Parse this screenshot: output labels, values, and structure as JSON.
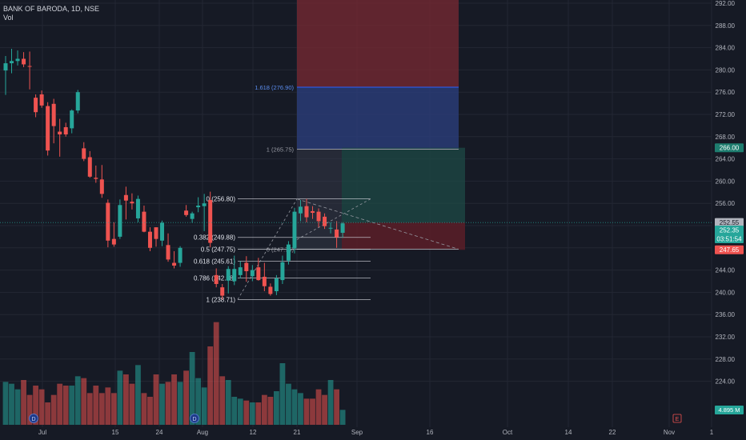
{
  "header": {
    "title": "BANK OF BARODA, 1D, NSE",
    "volume_label": "Vol"
  },
  "colors": {
    "background": "#161a25",
    "up": "#26a69a",
    "down": "#ef5350",
    "grid": "#232733",
    "axis_text": "#b2b5be",
    "fib_line": "#d1d4dc",
    "target_zone": "#7a2a33",
    "extension_zone": "#2a3d7a",
    "risk_zone": "#5a1f28",
    "reward_zone": "#1e4a46"
  },
  "chart_data": {
    "type": "candlestick",
    "title": "BANK OF BARODA, 1D, NSE",
    "ylim": [
      220.6,
      293.2
    ],
    "y_ticks": [
      "292.00",
      "288.00",
      "284.00",
      "280.00",
      "276.00",
      "272.00",
      "268.00",
      "264.00",
      "260.00",
      "256.00",
      "252.00",
      "248.00",
      "244.00",
      "240.00",
      "236.00",
      "232.00",
      "228.00",
      "224.00"
    ],
    "x_ticks": [
      "Jul",
      "15",
      "24",
      "Aug",
      "12",
      "21",
      "Sep",
      "16",
      "Oct",
      "14",
      "22",
      "Nov",
      "1"
    ],
    "candles": [
      {
        "o": 279.9,
        "h": 282.5,
        "l": 275.5,
        "c": 281.2
      },
      {
        "o": 281.2,
        "h": 283.8,
        "l": 279.4,
        "c": 281.6
      },
      {
        "o": 281.6,
        "h": 283.5,
        "l": 280.8,
        "c": 282.0
      },
      {
        "o": 282.0,
        "h": 283.2,
        "l": 280.5,
        "c": 281.0
      },
      {
        "o": 280.7,
        "h": 283.3,
        "l": 276.5,
        "c": 280.6
      },
      {
        "o": 275.0,
        "h": 275.6,
        "l": 271.5,
        "c": 272.4
      },
      {
        "o": 275.6,
        "h": 276.3,
        "l": 273.2,
        "c": 273.6
      },
      {
        "o": 273.5,
        "h": 274.2,
        "l": 264.6,
        "c": 265.5
      },
      {
        "o": 273.9,
        "h": 274.8,
        "l": 266.8,
        "c": 269.9
      },
      {
        "o": 268.9,
        "h": 271.2,
        "l": 264.4,
        "c": 268.4
      },
      {
        "o": 269.7,
        "h": 270.5,
        "l": 268.0,
        "c": 268.4
      },
      {
        "o": 269.5,
        "h": 272.9,
        "l": 268.6,
        "c": 272.7
      },
      {
        "o": 272.7,
        "h": 276.4,
        "l": 272.2,
        "c": 276.0
      },
      {
        "o": 265.9,
        "h": 267.0,
        "l": 263.6,
        "c": 264.0
      },
      {
        "o": 264.3,
        "h": 265.4,
        "l": 260.6,
        "c": 260.8
      },
      {
        "o": 260.6,
        "h": 262.8,
        "l": 259.7,
        "c": 260.4
      },
      {
        "o": 260.3,
        "h": 262.9,
        "l": 257.0,
        "c": 257.7
      },
      {
        "o": 256.1,
        "h": 256.7,
        "l": 248.1,
        "c": 249.3
      },
      {
        "o": 249.6,
        "h": 252.6,
        "l": 248.2,
        "c": 248.6
      },
      {
        "o": 250.0,
        "h": 256.7,
        "l": 249.6,
        "c": 255.7
      },
      {
        "o": 257.5,
        "h": 259.0,
        "l": 253.1,
        "c": 256.5
      },
      {
        "o": 256.3,
        "h": 257.8,
        "l": 254.9,
        "c": 256.0
      },
      {
        "o": 253.3,
        "h": 257.4,
        "l": 252.6,
        "c": 256.8
      },
      {
        "o": 254.5,
        "h": 255.6,
        "l": 250.8,
        "c": 250.9
      },
      {
        "o": 250.9,
        "h": 251.7,
        "l": 247.4,
        "c": 248.0
      },
      {
        "o": 251.7,
        "h": 251.7,
        "l": 248.2,
        "c": 249.6
      },
      {
        "o": 249.3,
        "h": 252.9,
        "l": 248.3,
        "c": 252.5
      },
      {
        "o": 248.5,
        "h": 250.6,
        "l": 245.5,
        "c": 245.9
      },
      {
        "o": 245.3,
        "h": 247.4,
        "l": 244.3,
        "c": 244.8
      },
      {
        "o": 245.3,
        "h": 248.3,
        "l": 244.6,
        "c": 248.0
      },
      {
        "o": 254.7,
        "h": 255.7,
        "l": 253.6,
        "c": 253.9
      },
      {
        "o": 253.2,
        "h": 254.5,
        "l": 252.5,
        "c": 254.2
      },
      {
        "o": 255.3,
        "h": 257.1,
        "l": 254.4,
        "c": 255.6
      },
      {
        "o": 255.5,
        "h": 257.7,
        "l": 251.0,
        "c": 256.0
      },
      {
        "o": 256.6,
        "h": 258.1,
        "l": 248.1,
        "c": 248.9
      },
      {
        "o": 243.1,
        "h": 244.3,
        "l": 240.9,
        "c": 241.5
      },
      {
        "o": 240.9,
        "h": 241.5,
        "l": 238.7,
        "c": 239.4
      },
      {
        "o": 242.1,
        "h": 244.7,
        "l": 239.8,
        "c": 244.2
      },
      {
        "o": 242.0,
        "h": 246.6,
        "l": 241.3,
        "c": 244.2
      },
      {
        "o": 243.1,
        "h": 245.6,
        "l": 242.5,
        "c": 244.5
      },
      {
        "o": 245.3,
        "h": 246.5,
        "l": 241.9,
        "c": 243.8
      },
      {
        "o": 242.9,
        "h": 244.9,
        "l": 242.0,
        "c": 244.0
      },
      {
        "o": 244.5,
        "h": 246.2,
        "l": 242.1,
        "c": 242.2
      },
      {
        "o": 242.8,
        "h": 245.3,
        "l": 240.2,
        "c": 241.1
      },
      {
        "o": 241.0,
        "h": 241.6,
        "l": 239.4,
        "c": 239.7
      },
      {
        "o": 240.2,
        "h": 243.1,
        "l": 239.5,
        "c": 242.5
      },
      {
        "o": 242.2,
        "h": 246.6,
        "l": 241.5,
        "c": 245.4
      },
      {
        "o": 245.7,
        "h": 249.2,
        "l": 245.0,
        "c": 248.6
      },
      {
        "o": 247.9,
        "h": 255.2,
        "l": 247.0,
        "c": 254.5
      },
      {
        "o": 254.2,
        "h": 256.6,
        "l": 252.8,
        "c": 255.4
      },
      {
        "o": 255.5,
        "h": 256.8,
        "l": 252.6,
        "c": 253.5
      },
      {
        "o": 254.6,
        "h": 255.5,
        "l": 253.2,
        "c": 254.3
      },
      {
        "o": 254.5,
        "h": 255.1,
        "l": 251.7,
        "c": 252.8
      },
      {
        "o": 253.6,
        "h": 254.2,
        "l": 251.4,
        "c": 251.9
      },
      {
        "o": 251.6,
        "h": 252.6,
        "l": 250.6,
        "c": 251.6
      },
      {
        "o": 251.3,
        "h": 252.8,
        "l": 248.0,
        "c": 249.9
      },
      {
        "o": 250.7,
        "h": 252.6,
        "l": 249.8,
        "c": 252.4
      }
    ],
    "volume": [
      2.3,
      2.2,
      1.9,
      2.4,
      1.6,
      2.1,
      1.9,
      1.2,
      1.6,
      2.2,
      2.1,
      2.1,
      2.6,
      2.5,
      1.7,
      2.1,
      1.7,
      2.0,
      1.7,
      2.9,
      2.7,
      2.2,
      3.2,
      1.7,
      1.5,
      2.7,
      2.2,
      2.3,
      2.7,
      2.3,
      2.9,
      3.9,
      2.5,
      2.0,
      4.2,
      5.5,
      2.6,
      2.4,
      1.5,
      1.4,
      1.3,
      1.2,
      1.2,
      1.6,
      1.5,
      1.8,
      3.3,
      2.2,
      1.9,
      1.7,
      1.4,
      1.4,
      1.9,
      1.6,
      2.4,
      1.9,
      0.8
    ],
    "fibonacci": {
      "levels": [
        {
          "ratio": "0",
          "label": "0 (256.80)",
          "value": 256.8
        },
        {
          "ratio": "0.382",
          "label": "0.382 (249.88)",
          "value": 249.88
        },
        {
          "ratio": "0.5",
          "label": "0.5 (247.75)",
          "value": 247.75
        },
        {
          "ratio": "0.618",
          "label": "0.618 (245.61)",
          "value": 245.61
        },
        {
          "ratio": "0.786",
          "label": "0.786 (242.58)",
          "value": 242.58
        },
        {
          "ratio": "1",
          "label": "1 (238.71)",
          "value": 238.71
        }
      ],
      "extension": [
        {
          "label": "1.618 (276.90)",
          "value": 276.9
        },
        {
          "label": "1 (265.75)",
          "value": 265.75
        },
        {
          "label": "0 (247.75)",
          "value": 247.75
        }
      ]
    },
    "position": {
      "entry": 252.55,
      "target": 266.0,
      "stop": 247.65,
      "zone_top": 293.0
    },
    "price_tags": [
      {
        "label": "266.00",
        "value": 266.0,
        "color": "#1e7d6f"
      },
      {
        "label": "252.55",
        "value": 252.55,
        "color": "#b2b5be",
        "dark_text": true
      },
      {
        "label": "252.35",
        "value": 251.2,
        "color": "#26a69a",
        "sub": "03:51:54"
      },
      {
        "label": "247.65",
        "value": 247.65,
        "color": "#ef5350"
      }
    ],
    "volume_tag": "4.895 M",
    "markers": [
      {
        "letter": "D"
      },
      {
        "letter": "D"
      },
      {
        "letter": "E"
      }
    ]
  }
}
